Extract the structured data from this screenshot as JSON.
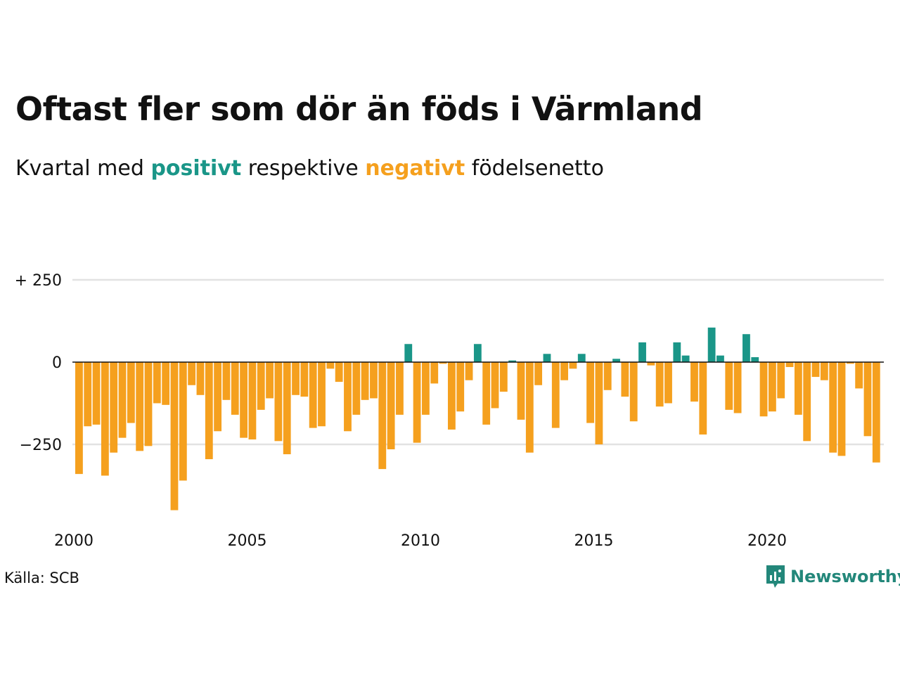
{
  "title": "Oftast fler som dör än föds i Värmland",
  "subtitle": {
    "prefix": "Kvartal med",
    "positive": "positivt",
    "middle": "respektive",
    "negative": "negativt",
    "suffix": "födelsenetto"
  },
  "source": "Källa: SCB",
  "brand": "Newsworthy",
  "colors": {
    "positive": "#1a9688",
    "negative": "#f5a01e",
    "grid": "#e2e2e2",
    "zero_line": "#111111",
    "brand": "#23877a"
  },
  "chart_data": {
    "type": "bar",
    "grid": true,
    "x_start": 2000.0,
    "x_step": 0.25,
    "xlim": [
      2000.0,
      2023.5
    ],
    "ylim": [
      -440,
      250
    ],
    "x_ticks": [
      {
        "value": 2000,
        "label": "2000"
      },
      {
        "value": 2005,
        "label": "2005"
      },
      {
        "value": 2010,
        "label": "2010"
      },
      {
        "value": 2015,
        "label": "2015"
      },
      {
        "value": 2020,
        "label": "2020"
      }
    ],
    "y_ticks": [
      {
        "value": 250,
        "label": "+ 250"
      },
      {
        "value": 0,
        "label": "0"
      },
      {
        "value": -250,
        "label": "−250"
      }
    ],
    "values": [
      -340,
      -195,
      -190,
      -345,
      -275,
      -230,
      -185,
      -270,
      -255,
      -125,
      -130,
      -450,
      -360,
      -70,
      -100,
      -295,
      -210,
      -115,
      -160,
      -230,
      -235,
      -145,
      -110,
      -240,
      -280,
      -100,
      -105,
      -200,
      -195,
      -20,
      -60,
      -210,
      -160,
      -115,
      -110,
      -325,
      -265,
      -160,
      55,
      -245,
      -160,
      -65,
      -5,
      -205,
      -150,
      -55,
      55,
      -190,
      -140,
      -90,
      5,
      -175,
      -275,
      -70,
      25,
      -200,
      -55,
      -20,
      25,
      -185,
      -250,
      -85,
      10,
      -105,
      -180,
      60,
      -10,
      -135,
      -125,
      60,
      20,
      -120,
      -220,
      105,
      20,
      -145,
      -155,
      85,
      15,
      -165,
      -150,
      -110,
      -15,
      -160,
      -240,
      -45,
      -55,
      -275,
      -285,
      -5,
      -80,
      -225,
      -305
    ]
  }
}
